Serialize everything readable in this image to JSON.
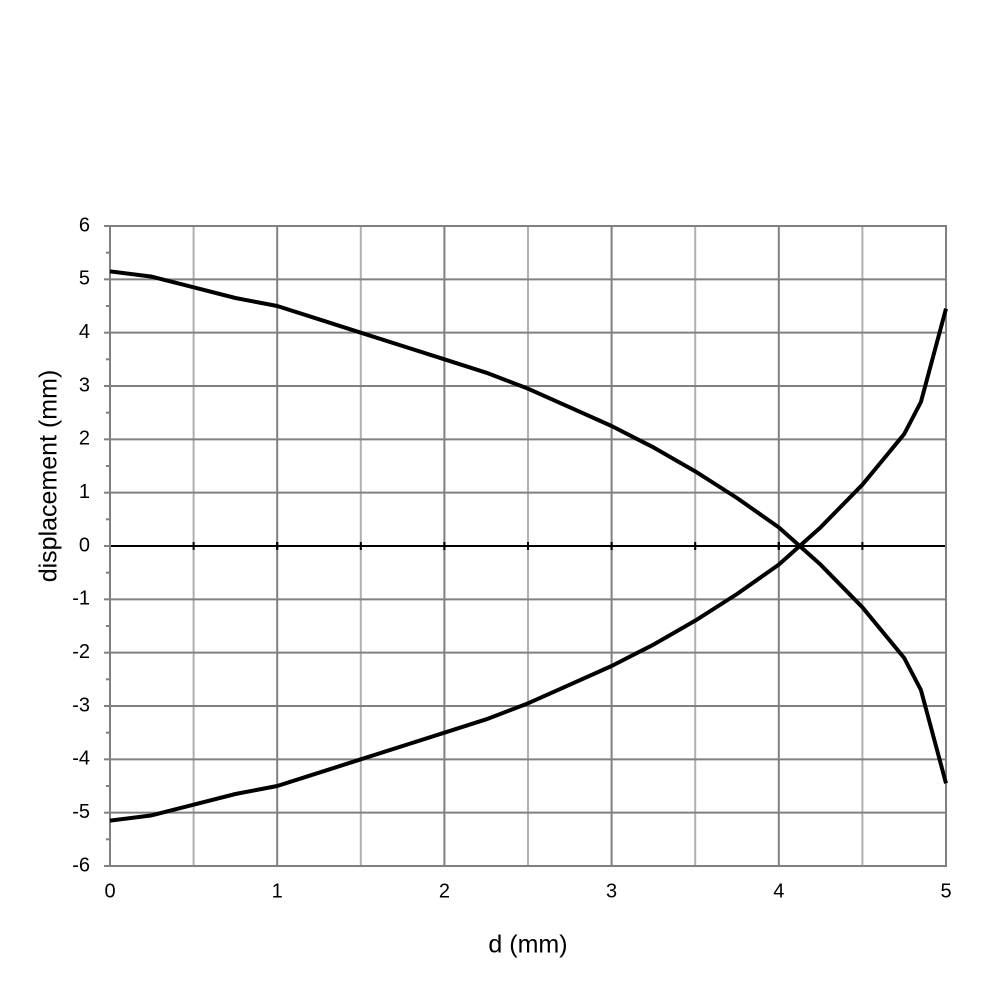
{
  "chart_data": {
    "type": "line",
    "x_label": "d (mm)",
    "y_label": "displacement (mm)",
    "x": [
      0,
      0.25,
      0.5,
      0.75,
      1,
      1.25,
      1.5,
      1.75,
      2,
      2.25,
      2.5,
      2.75,
      3,
      3.25,
      3.5,
      3.75,
      4,
      4.25,
      4.5,
      4.75,
      4.85,
      5
    ],
    "series": [
      {
        "color": "#000000",
        "values": [
          5.15,
          5.05,
          4.85,
          4.65,
          4.5,
          4.25,
          4.0,
          3.75,
          3.5,
          3.25,
          2.95,
          2.6,
          2.25,
          1.85,
          1.4,
          0.9,
          0.35,
          -0.35,
          -1.15,
          -2.1,
          -2.7,
          -4.45
        ]
      },
      {
        "color": "#000000",
        "values": [
          -5.15,
          -5.05,
          -4.85,
          -4.65,
          -4.5,
          -4.25,
          -4.0,
          -3.75,
          -3.5,
          -3.25,
          -2.95,
          -2.6,
          -2.25,
          -1.85,
          -1.4,
          -0.9,
          -0.35,
          0.35,
          1.15,
          2.1,
          2.7,
          4.45
        ]
      }
    ],
    "xlim": [
      0,
      5
    ],
    "ylim": [
      -6,
      6
    ],
    "xticks": [
      0,
      1,
      2,
      3,
      4,
      5
    ],
    "yticks": [
      -6,
      -5,
      -4,
      -3,
      -2,
      -1,
      0,
      1,
      2,
      3,
      4,
      5,
      6
    ],
    "grid": true,
    "x_minor_grid": true
  }
}
